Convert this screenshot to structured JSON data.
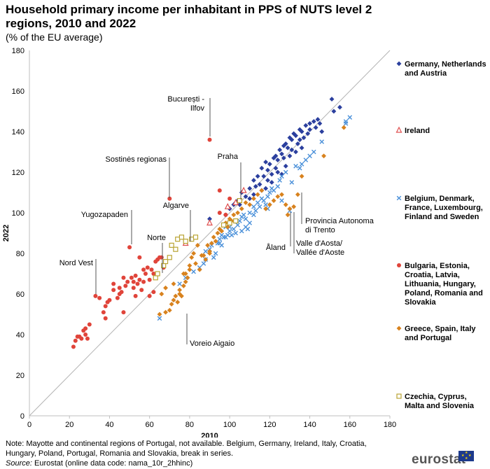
{
  "title": "Household primary income per inhabitant in PPS of NUTS level 2 regions, 2010 and 2022",
  "subtitle": "(% of the EU average)",
  "note": "Note: Mayotte and continental regions of Portugal, not available. Belgium, Germany, Ireland, Italy, Croatia, Hungary, Poland, Portugal, Romania and Slovakia, break in series.",
  "source_label": "Source:",
  "source_text": "Eurostat (online data code: nama_10r_2hhinc)",
  "logo_text": "eurostat",
  "colors": {
    "germany": "#2b3f9e",
    "ireland": "#e05050",
    "belgium": "#4a90d9",
    "bulgaria": "#e0443a",
    "greece": "#d8821e",
    "czechia": "#b9a434",
    "diagonal": "#b3b3b3",
    "axis": "#bfbfbf",
    "label_line": "#555555"
  },
  "chart_data": {
    "type": "scatter",
    "xlabel": "2010",
    "ylabel": "2022",
    "xlim": [
      0,
      180
    ],
    "ylim": [
      0,
      180
    ],
    "xticks": [
      0,
      20,
      40,
      60,
      80,
      100,
      120,
      140,
      160,
      180
    ],
    "yticks": [
      0,
      20,
      40,
      60,
      80,
      100,
      120,
      140,
      160,
      180
    ],
    "diagonal": true,
    "series": [
      {
        "name": "Germany, Netherlands and Austria",
        "marker": "diamond",
        "color": "#2b3f9e",
        "points": [
          [
            90,
            97
          ],
          [
            103,
            105
          ],
          [
            105,
            104
          ],
          [
            108,
            108
          ],
          [
            110,
            112
          ],
          [
            112,
            116
          ],
          [
            113,
            113
          ],
          [
            114,
            118
          ],
          [
            115,
            114
          ],
          [
            116,
            122
          ],
          [
            117,
            118
          ],
          [
            118,
            125
          ],
          [
            119,
            121
          ],
          [
            120,
            124
          ],
          [
            121,
            119
          ],
          [
            122,
            127
          ],
          [
            123,
            128
          ],
          [
            124,
            126
          ],
          [
            125,
            131
          ],
          [
            126,
            129
          ],
          [
            127,
            133
          ],
          [
            128,
            134
          ],
          [
            129,
            132
          ],
          [
            130,
            137
          ],
          [
            131,
            136
          ],
          [
            132,
            139
          ],
          [
            133,
            138
          ],
          [
            134,
            134
          ],
          [
            135,
            141
          ],
          [
            136,
            140
          ],
          [
            138,
            143
          ],
          [
            140,
            144
          ],
          [
            142,
            145
          ],
          [
            143,
            142
          ],
          [
            144,
            146
          ],
          [
            145,
            144
          ],
          [
            151,
            156
          ],
          [
            152,
            150
          ],
          [
            155,
            152
          ],
          [
            118,
            112
          ],
          [
            121,
            115
          ],
          [
            124,
            120
          ],
          [
            128,
            123
          ],
          [
            133,
            130
          ],
          [
            137,
            137
          ],
          [
            146,
            140
          ],
          [
            106,
            110
          ],
          [
            110,
            107
          ],
          [
            116,
            111
          ],
          [
            126,
            119
          ],
          [
            130,
            128
          ],
          [
            136,
            132
          ],
          [
            139,
            139
          ],
          [
            140,
            141
          ],
          [
            102,
            104
          ],
          [
            98,
            99
          ],
          [
            100,
            102
          ],
          [
            104,
            106
          ],
          [
            112,
            109
          ],
          [
            119,
            116
          ],
          [
            123,
            122
          ],
          [
            127,
            127
          ],
          [
            131,
            131
          ],
          [
            135,
            136
          ]
        ]
      },
      {
        "name": "Ireland",
        "marker": "triangle",
        "color": "#e05050",
        "points": [
          [
            78,
            85
          ],
          [
            90,
            95
          ],
          [
            99,
            103
          ],
          [
            103,
            105
          ],
          [
            107,
            111
          ]
        ]
      },
      {
        "name": "Belgium, Denmark, France, Luxembourg, Finland and Sweden",
        "marker": "cross",
        "color": "#4a90d9",
        "points": [
          [
            65,
            48
          ],
          [
            75,
            65
          ],
          [
            78,
            68
          ],
          [
            82,
            71
          ],
          [
            85,
            73
          ],
          [
            87,
            75
          ],
          [
            88,
            81
          ],
          [
            90,
            82
          ],
          [
            91,
            84
          ],
          [
            93,
            80
          ],
          [
            94,
            85
          ],
          [
            95,
            87
          ],
          [
            96,
            89
          ],
          [
            97,
            88
          ],
          [
            98,
            88
          ],
          [
            99,
            89
          ],
          [
            100,
            91
          ],
          [
            100,
            93
          ],
          [
            101,
            89
          ],
          [
            102,
            92
          ],
          [
            103,
            90
          ],
          [
            104,
            94
          ],
          [
            105,
            96
          ],
          [
            106,
            98
          ],
          [
            106,
            91
          ],
          [
            107,
            99
          ],
          [
            108,
            93
          ],
          [
            109,
            92
          ],
          [
            110,
            95
          ],
          [
            110,
            100
          ],
          [
            112,
            103
          ],
          [
            113,
            101
          ],
          [
            114,
            105
          ],
          [
            115,
            103
          ],
          [
            116,
            107
          ],
          [
            117,
            106
          ],
          [
            118,
            104
          ],
          [
            119,
            108
          ],
          [
            120,
            110
          ],
          [
            121,
            112
          ],
          [
            122,
            111
          ],
          [
            124,
            113
          ],
          [
            125,
            116
          ],
          [
            126,
            118
          ],
          [
            128,
            120
          ],
          [
            130,
            101
          ],
          [
            131,
            115
          ],
          [
            133,
            123
          ],
          [
            135,
            122
          ],
          [
            136,
            124
          ],
          [
            138,
            126
          ],
          [
            140,
            128
          ],
          [
            142,
            130
          ],
          [
            146,
            135
          ],
          [
            158,
            144
          ],
          [
            158,
            145
          ],
          [
            160,
            147
          ],
          [
            95,
            85
          ],
          [
            98,
            93
          ],
          [
            103,
            96
          ],
          [
            108,
            97
          ],
          [
            112,
            99
          ],
          [
            119,
            102
          ],
          [
            126,
            106
          ],
          [
            88,
            77
          ],
          [
            92,
            78
          ],
          [
            96,
            84
          ]
        ]
      },
      {
        "name": "Bulgaria, Estonia, Croatia, Latvia, Lithuania, Hungary, Poland, Romania and Slovakia",
        "marker": "circle",
        "color": "#e0443a",
        "points": [
          [
            22,
            34
          ],
          [
            23,
            37
          ],
          [
            24,
            39
          ],
          [
            25,
            39
          ],
          [
            26,
            38
          ],
          [
            27,
            42
          ],
          [
            28,
            43
          ],
          [
            28,
            40
          ],
          [
            29,
            38
          ],
          [
            30,
            45
          ],
          [
            33,
            59
          ],
          [
            35,
            58
          ],
          [
            37,
            51
          ],
          [
            38,
            48
          ],
          [
            38,
            54
          ],
          [
            39,
            56
          ],
          [
            40,
            57
          ],
          [
            42,
            65
          ],
          [
            42,
            62
          ],
          [
            44,
            58
          ],
          [
            45,
            63
          ],
          [
            46,
            61
          ],
          [
            47,
            68
          ],
          [
            48,
            64
          ],
          [
            49,
            66
          ],
          [
            50,
            83
          ],
          [
            51,
            68
          ],
          [
            52,
            63
          ],
          [
            52,
            66
          ],
          [
            53,
            69
          ],
          [
            54,
            65
          ],
          [
            55,
            67
          ],
          [
            56,
            62
          ],
          [
            57,
            66
          ],
          [
            58,
            70
          ],
          [
            59,
            73
          ],
          [
            60,
            67
          ],
          [
            61,
            72
          ],
          [
            62,
            70
          ],
          [
            63,
            76
          ],
          [
            64,
            77
          ],
          [
            65,
            78
          ],
          [
            66,
            78
          ],
          [
            67,
            73
          ],
          [
            55,
            78
          ],
          [
            57,
            72
          ],
          [
            47,
            51
          ],
          [
            60,
            59
          ],
          [
            62,
            61
          ],
          [
            53,
            59
          ],
          [
            70,
            107
          ],
          [
            90,
            136
          ],
          [
            95,
            111
          ],
          [
            100,
            107
          ],
          [
            98,
            99
          ],
          [
            95,
            100
          ],
          [
            45,
            60
          ]
        ]
      },
      {
        "name": "Greece, Spain, Italy and Portugal",
        "marker": "diamond",
        "color": "#d8821e",
        "points": [
          [
            65,
            50
          ],
          [
            68,
            51
          ],
          [
            71,
            55
          ],
          [
            72,
            57
          ],
          [
            73,
            59
          ],
          [
            74,
            56
          ],
          [
            75,
            60
          ],
          [
            76,
            59
          ],
          [
            77,
            64
          ],
          [
            78,
            66
          ],
          [
            78,
            70
          ],
          [
            79,
            68
          ],
          [
            80,
            74
          ],
          [
            81,
            78
          ],
          [
            82,
            80
          ],
          [
            83,
            75
          ],
          [
            85,
            72
          ],
          [
            86,
            79
          ],
          [
            88,
            77
          ],
          [
            89,
            84
          ],
          [
            90,
            81
          ],
          [
            91,
            85
          ],
          [
            92,
            88
          ],
          [
            93,
            86
          ],
          [
            94,
            90
          ],
          [
            95,
            92
          ],
          [
            96,
            91
          ],
          [
            97,
            94
          ],
          [
            98,
            95
          ],
          [
            99,
            93
          ],
          [
            100,
            97
          ],
          [
            101,
            96
          ],
          [
            102,
            99
          ],
          [
            104,
            100
          ],
          [
            106,
            102
          ],
          [
            108,
            105
          ],
          [
            110,
            104
          ],
          [
            112,
            107
          ],
          [
            114,
            109
          ],
          [
            116,
            111
          ],
          [
            118,
            102
          ],
          [
            120,
            104
          ],
          [
            122,
            106
          ],
          [
            124,
            108
          ],
          [
            126,
            109
          ],
          [
            128,
            104
          ],
          [
            129,
            99
          ],
          [
            130,
            102
          ],
          [
            132,
            103
          ],
          [
            134,
            109
          ],
          [
            136,
            118
          ],
          [
            147,
            128
          ],
          [
            157,
            142
          ],
          [
            70,
            52
          ],
          [
            68,
            63
          ],
          [
            66,
            60
          ],
          [
            72,
            65
          ],
          [
            75,
            62
          ],
          [
            77,
            70
          ],
          [
            80,
            72
          ],
          [
            84,
            84
          ],
          [
            87,
            79
          ],
          [
            90,
            80
          ]
        ]
      },
      {
        "name": "Czechia, Cyprus, Malta and Slovenia",
        "marker": "square",
        "color": "#b9a434",
        "points": [
          [
            63,
            68
          ],
          [
            64,
            70
          ],
          [
            67,
            74
          ],
          [
            68,
            76
          ],
          [
            70,
            78
          ],
          [
            71,
            84
          ],
          [
            73,
            82
          ],
          [
            74,
            87
          ],
          [
            76,
            88
          ],
          [
            78,
            86
          ],
          [
            81,
            87
          ],
          [
            83,
            88
          ],
          [
            97,
            94
          ],
          [
            100,
            95
          ],
          [
            103,
            96
          ],
          [
            105,
            106
          ]
        ]
      }
    ],
    "annotations": [
      {
        "text": "București - Ilfov",
        "lines": [
          "București -",
          "Ilfov"
        ]
      },
      {
        "text": "Sostinės regionas",
        "lines": [
          "Sostinės regionas"
        ]
      },
      {
        "text": "Praha",
        "lines": [
          "Praha"
        ]
      },
      {
        "text": "Algarve",
        "lines": [
          "Algarve"
        ]
      },
      {
        "text": "Yugozapaden",
        "lines": [
          "Yugozapaden"
        ]
      },
      {
        "text": "Norte",
        "lines": [
          "Norte"
        ]
      },
      {
        "text": "Nord Vest",
        "lines": [
          "Nord Vest"
        ]
      },
      {
        "text": "Voreio Aigaio",
        "lines": [
          "Voreio Aigaio"
        ]
      },
      {
        "text": "Åland",
        "lines": [
          "Åland"
        ]
      },
      {
        "text": "Valle d'Aosta/ Vallée d'Aoste",
        "lines": [
          "Valle d'Aosta/",
          "Vallée d'Aoste"
        ]
      },
      {
        "text": "Provincia Autonoma di Trento",
        "lines": [
          "Provincia Autonoma",
          "di Trento"
        ]
      }
    ]
  },
  "legend": [
    {
      "label": "Germany, Netherlands and Austria",
      "lines": [
        "Germany, Netherlands",
        "and Austria"
      ]
    },
    {
      "label": "Ireland",
      "lines": [
        "Ireland"
      ]
    },
    {
      "label": "Belgium, Denmark, France, Luxembourg, Finland and Sweden",
      "lines": [
        "Belgium, Denmark,",
        "France, Luxembourg,",
        "Finland and Sweden"
      ]
    },
    {
      "label": "Bulgaria, Estonia, Croatia, Latvia, Lithuania, Hungary, Poland, Romania and Slovakia",
      "lines": [
        "Bulgaria, Estonia,",
        "Croatia, Latvia,",
        "Lithuania, Hungary,",
        "Poland, Romania and",
        "Slovakia"
      ]
    },
    {
      "label": "Greece, Spain, Italy and Portugal",
      "lines": [
        "Greece, Spain, Italy",
        "and Portugal"
      ]
    },
    {
      "label": "Czechia, Cyprus, Malta and Slovenia",
      "lines": [
        "Czechia,  Cyprus,",
        "Malta and Slovenia"
      ]
    }
  ]
}
